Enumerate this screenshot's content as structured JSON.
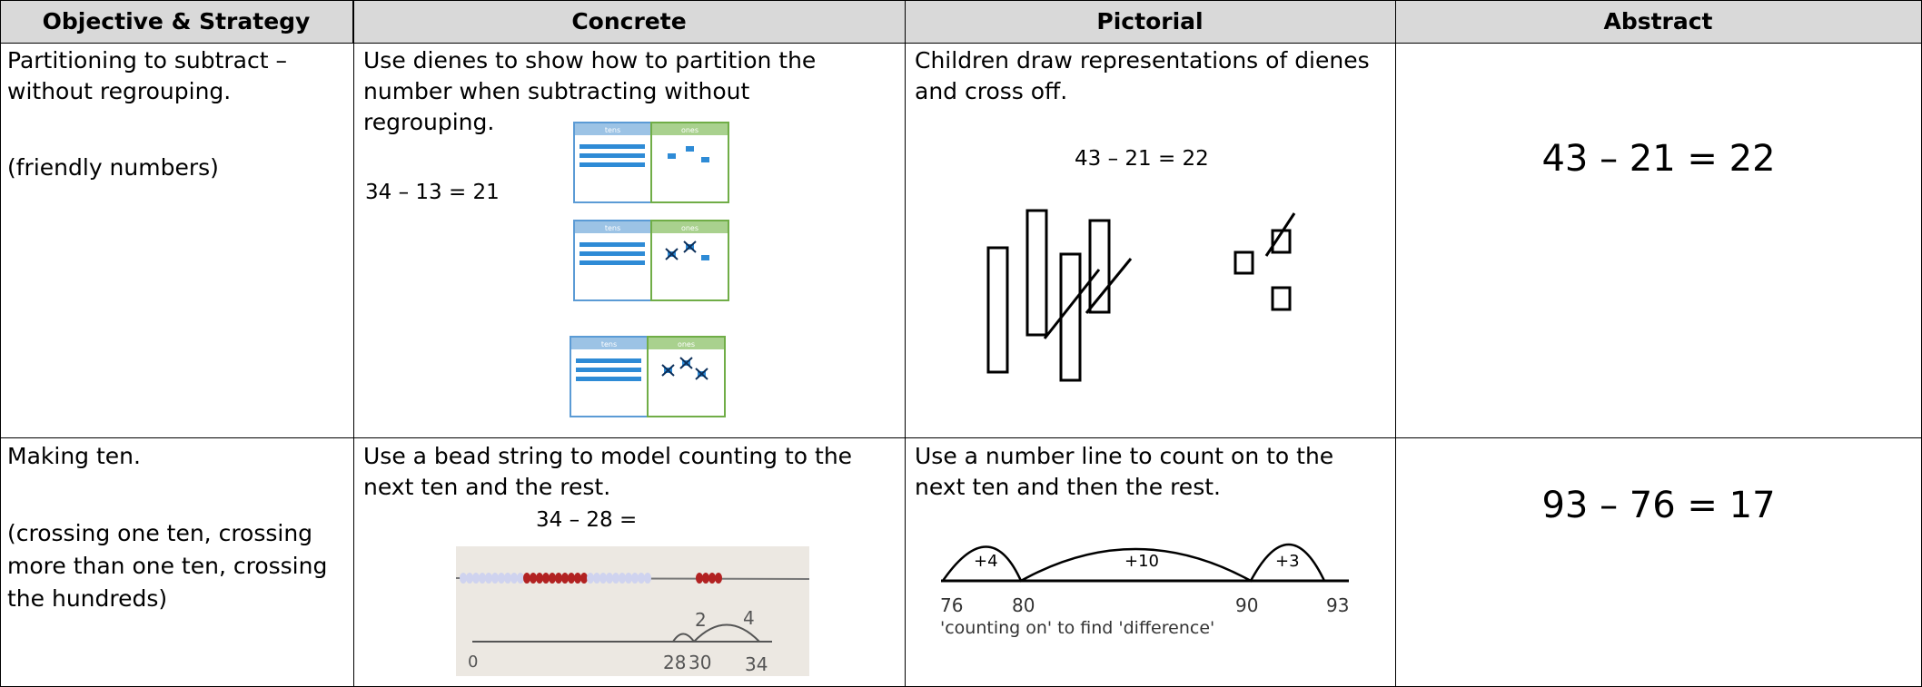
{
  "table": {
    "headers": [
      "Objective & Strategy",
      "Concrete",
      "Pictorial",
      "Abstract"
    ],
    "rows": [
      {
        "objective": "Partitioning to subtract – without regrouping.",
        "objective_note": "(friendly numbers)",
        "concrete": {
          "text": "Use dienes to show how to partition the number when subtracting without regrouping.",
          "equation": "34 – 13 = 21",
          "panel_labels": [
            "tens",
            "ones"
          ]
        },
        "pictorial": {
          "text": "Children draw representations of dienes and cross off.",
          "equation": "43 – 21 = 22"
        },
        "abstract": "43 – 21 = 22"
      },
      {
        "objective": "Making ten.",
        "objective_note": "(crossing one ten, crossing more than one ten, crossing the hundreds)",
        "concrete": {
          "text": "Use a bead string to model counting to the next ten and the rest.",
          "equation": "34 – 28 =",
          "jumps": [
            "2",
            "4"
          ],
          "marks": [
            "0",
            "28",
            "30",
            "34"
          ]
        },
        "pictorial": {
          "text": "Use a number line to count on to the next ten and then the rest.",
          "jumps": [
            "+4",
            "+10",
            "+3"
          ],
          "marks": [
            "76",
            "80",
            "90",
            "93"
          ],
          "caption": "'counting on' to find 'difference'"
        },
        "abstract": "93 – 76 = 17"
      }
    ]
  }
}
